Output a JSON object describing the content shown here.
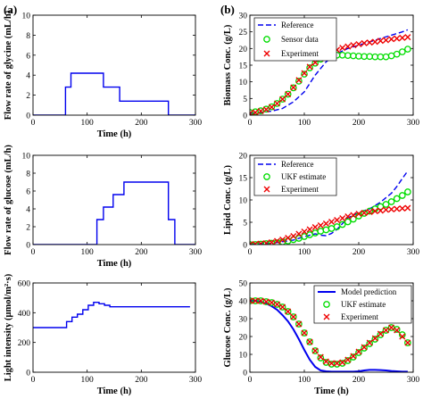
{
  "panel_labels": {
    "a": "(a)",
    "b": "(b)"
  },
  "chart_data": [
    {
      "id": "a1",
      "type": "line",
      "xlabel": "Time (h)",
      "ylabel": "Flow rate of glycine (mL/h)",
      "xlim": [
        0,
        300
      ],
      "ylim": [
        0,
        10
      ],
      "xticks": [
        0,
        100,
        200,
        300
      ],
      "yticks": [
        0,
        2,
        4,
        6,
        8,
        10
      ],
      "grid": false,
      "series": [
        {
          "style": "solid",
          "color": "#0000ee",
          "x": [
            0,
            60,
            60,
            70,
            70,
            130,
            130,
            160,
            160,
            250,
            250,
            300
          ],
          "y": [
            0,
            0,
            2.8,
            2.8,
            4.2,
            4.2,
            2.8,
            2.8,
            1.4,
            1.4,
            0,
            0
          ]
        }
      ]
    },
    {
      "id": "b1",
      "type": "line",
      "xlabel": "",
      "ylabel": "Biomass Conc. (g/L)",
      "xlim": [
        0,
        300
      ],
      "ylim": [
        0,
        30
      ],
      "xticks": [
        0,
        100,
        200,
        300
      ],
      "yticks": [
        0,
        5,
        10,
        15,
        20,
        25,
        30
      ],
      "grid": false,
      "legend_position": "top-left",
      "series": [
        {
          "name": "Reference",
          "style": "dashed",
          "color": "#0000ee",
          "x": [
            0,
            20,
            40,
            60,
            80,
            100,
            110,
            120,
            130,
            140,
            160,
            180,
            200,
            220,
            240,
            260,
            280,
            290
          ],
          "y": [
            0.5,
            0.8,
            1.2,
            2,
            4,
            7,
            9.5,
            12,
            14,
            16,
            18.5,
            20,
            21,
            22,
            23,
            24,
            25,
            25.6
          ]
        },
        {
          "name": "Sensor data",
          "style": "circle",
          "color": "#00dd00",
          "x": [
            0,
            10,
            20,
            30,
            40,
            50,
            60,
            70,
            80,
            90,
            100,
            110,
            120,
            130,
            140,
            150,
            160,
            170,
            180,
            190,
            200,
            210,
            220,
            230,
            240,
            250,
            260,
            270,
            280,
            290
          ],
          "y": [
            0.8,
            1,
            1.3,
            1.8,
            2.5,
            3.5,
            4.8,
            6.3,
            8.2,
            10.2,
            12.3,
            14.2,
            15.6,
            16.8,
            17.4,
            17.8,
            18,
            18,
            17.9,
            17.8,
            17.7,
            17.6,
            17.6,
            17.5,
            17.5,
            17.5,
            17.8,
            18.3,
            19,
            19.8
          ]
        },
        {
          "name": "Experiment",
          "style": "cross",
          "color": "#ee0000",
          "x": [
            0,
            10,
            20,
            30,
            40,
            50,
            60,
            70,
            80,
            90,
            100,
            110,
            120,
            130,
            140,
            150,
            160,
            170,
            180,
            190,
            200,
            210,
            220,
            230,
            240,
            250,
            260,
            270,
            280,
            290
          ],
          "y": [
            0.5,
            0.8,
            1.2,
            1.7,
            2.4,
            3.5,
            4.8,
            6.3,
            8.3,
            10.5,
            12.6,
            14.5,
            15.8,
            17,
            18.2,
            19,
            19.6,
            20.2,
            20.6,
            21,
            21.3,
            21.6,
            21.8,
            22,
            22.3,
            22.5,
            22.8,
            23,
            23.2,
            23.4
          ]
        }
      ]
    },
    {
      "id": "a2",
      "type": "line",
      "xlabel": "Time (h)",
      "ylabel": "Flow rate of glucose (mL/h)",
      "xlim": [
        0,
        300
      ],
      "ylim": [
        0,
        10
      ],
      "xticks": [
        0,
        100,
        200,
        300
      ],
      "yticks": [
        0,
        2,
        4,
        6,
        8,
        10
      ],
      "grid": false,
      "series": [
        {
          "style": "solid",
          "color": "#0000ee",
          "x": [
            0,
            118,
            118,
            130,
            130,
            148,
            148,
            168,
            168,
            250,
            250,
            262,
            262,
            300
          ],
          "y": [
            0,
            0,
            2.8,
            2.8,
            4.2,
            4.2,
            5.6,
            5.6,
            7,
            7,
            2.8,
            2.8,
            0,
            0
          ]
        }
      ]
    },
    {
      "id": "b2",
      "type": "line",
      "xlabel": "",
      "ylabel": "Lipid Conc. (g/L)",
      "xlim": [
        0,
        300
      ],
      "ylim": [
        0,
        20
      ],
      "xticks": [
        0,
        100,
        200,
        300
      ],
      "yticks": [
        0,
        5,
        10,
        15,
        20
      ],
      "grid": false,
      "legend_position": "top-left",
      "series": [
        {
          "name": "Reference",
          "style": "dashed",
          "color": "#0000ee",
          "x": [
            0,
            40,
            80,
            100,
            120,
            130,
            140,
            150,
            160,
            170,
            180,
            200,
            220,
            240,
            260,
            270,
            280,
            290
          ],
          "y": [
            0,
            0.3,
            1,
            1.8,
            2.4,
            2.1,
            2,
            2.5,
            3.4,
            4.7,
            6,
            7.2,
            8,
            9.5,
            11.5,
            13,
            14.8,
            16.5
          ]
        },
        {
          "name": "UKF estimate",
          "style": "circle",
          "color": "#00dd00",
          "x": [
            0,
            10,
            20,
            30,
            40,
            50,
            60,
            70,
            80,
            90,
            100,
            110,
            120,
            130,
            140,
            150,
            160,
            170,
            180,
            190,
            200,
            210,
            220,
            230,
            240,
            250,
            260,
            270,
            280,
            290
          ],
          "y": [
            0,
            0,
            0.1,
            0.2,
            0.3,
            0.4,
            0.6,
            0.8,
            1.1,
            1.4,
            1.8,
            2.2,
            2.6,
            3,
            3.3,
            3.6,
            4,
            4.5,
            5.1,
            5.7,
            6.4,
            7,
            7.5,
            8,
            8.5,
            9,
            9.6,
            10.3,
            11,
            11.8
          ]
        },
        {
          "name": "Experiment",
          "style": "cross",
          "color": "#ee0000",
          "x": [
            0,
            10,
            20,
            30,
            40,
            50,
            60,
            70,
            80,
            90,
            100,
            110,
            120,
            130,
            140,
            150,
            160,
            170,
            180,
            190,
            200,
            210,
            220,
            230,
            240,
            250,
            260,
            270,
            280,
            290
          ],
          "y": [
            0,
            0.1,
            0.2,
            0.3,
            0.5,
            0.8,
            1.1,
            1.5,
            1.9,
            2.4,
            2.9,
            3.4,
            3.9,
            4.3,
            4.7,
            5.1,
            5.5,
            5.9,
            6.3,
            6.6,
            6.9,
            7.1,
            7.3,
            7.5,
            7.6,
            7.8,
            7.9,
            8,
            8.1,
            8.2
          ]
        }
      ]
    },
    {
      "id": "a3",
      "type": "line",
      "xlabel": "Time (h)",
      "ylabel": "Light intensity (μmol/m²·s)",
      "xlim": [
        0,
        300
      ],
      "ylim": [
        0,
        600
      ],
      "xticks": [
        0,
        100,
        200,
        300
      ],
      "yticks": [
        0,
        200,
        400,
        600
      ],
      "grid": false,
      "series": [
        {
          "style": "solid",
          "color": "#0000ee",
          "x": [
            0,
            62,
            62,
            72,
            72,
            82,
            82,
            92,
            92,
            102,
            102,
            112,
            112,
            122,
            122,
            132,
            132,
            142,
            142,
            152,
            152,
            162,
            162,
            290
          ],
          "y": [
            300,
            300,
            340,
            340,
            370,
            370,
            390,
            390,
            420,
            420,
            450,
            450,
            470,
            470,
            460,
            460,
            450,
            450,
            440,
            440,
            440,
            440,
            440,
            440
          ]
        }
      ]
    },
    {
      "id": "b3",
      "type": "line",
      "xlabel": "Time (h)",
      "ylabel": "Glucose Conc. (g/L)",
      "xlim": [
        0,
        300
      ],
      "ylim": [
        0,
        50
      ],
      "xticks": [
        0,
        100,
        200,
        300
      ],
      "yticks": [
        0,
        10,
        20,
        30,
        40,
        50
      ],
      "grid": false,
      "legend_position": "top-right",
      "series": [
        {
          "name": "Model prediction",
          "style": "solid",
          "color": "#0000ee",
          "x": [
            0,
            10,
            20,
            30,
            40,
            50,
            60,
            70,
            80,
            90,
            100,
            110,
            120,
            130,
            140,
            150,
            160,
            170,
            180,
            190,
            200,
            210,
            220,
            230,
            240,
            250,
            260,
            270,
            280,
            290
          ],
          "y": [
            40,
            40,
            39.5,
            38.5,
            37,
            35,
            32,
            28.5,
            24,
            18.5,
            12.5,
            7,
            3,
            1,
            0.5,
            0.3,
            0.3,
            0.3,
            0.3,
            0.3,
            0.5,
            1,
            1.3,
            1.3,
            1.2,
            1,
            0.7,
            0.5,
            0.3,
            0.3
          ]
        },
        {
          "name": "UKF estimate",
          "style": "circle",
          "color": "#00dd00",
          "x": [
            0,
            10,
            20,
            30,
            40,
            50,
            60,
            70,
            80,
            90,
            100,
            110,
            120,
            130,
            140,
            150,
            160,
            170,
            180,
            190,
            200,
            210,
            220,
            230,
            240,
            250,
            260,
            270,
            280,
            290
          ],
          "y": [
            40,
            40,
            40,
            39.5,
            39,
            38,
            36.5,
            34,
            31,
            27,
            22,
            17,
            12,
            8,
            5.5,
            4.5,
            4.5,
            5,
            6.5,
            8.5,
            11,
            13.5,
            16,
            18.5,
            21,
            23.5,
            25,
            24,
            21,
            16.5
          ]
        },
        {
          "name": "Experiment",
          "style": "cross",
          "color": "#ee0000",
          "x": [
            0,
            10,
            20,
            30,
            40,
            50,
            60,
            70,
            80,
            90,
            100,
            110,
            120,
            130,
            140,
            150,
            160,
            170,
            180,
            190,
            200,
            210,
            220,
            230,
            240,
            250,
            260,
            270,
            280,
            290
          ],
          "y": [
            40,
            40,
            40,
            39.5,
            39,
            38,
            36.5,
            34,
            31,
            27,
            22,
            17,
            12,
            8.5,
            6,
            5,
            5,
            5.5,
            7,
            9,
            11.5,
            14,
            16.5,
            19,
            21.5,
            23.5,
            25,
            23.5,
            20,
            16.5
          ]
        }
      ]
    }
  ]
}
